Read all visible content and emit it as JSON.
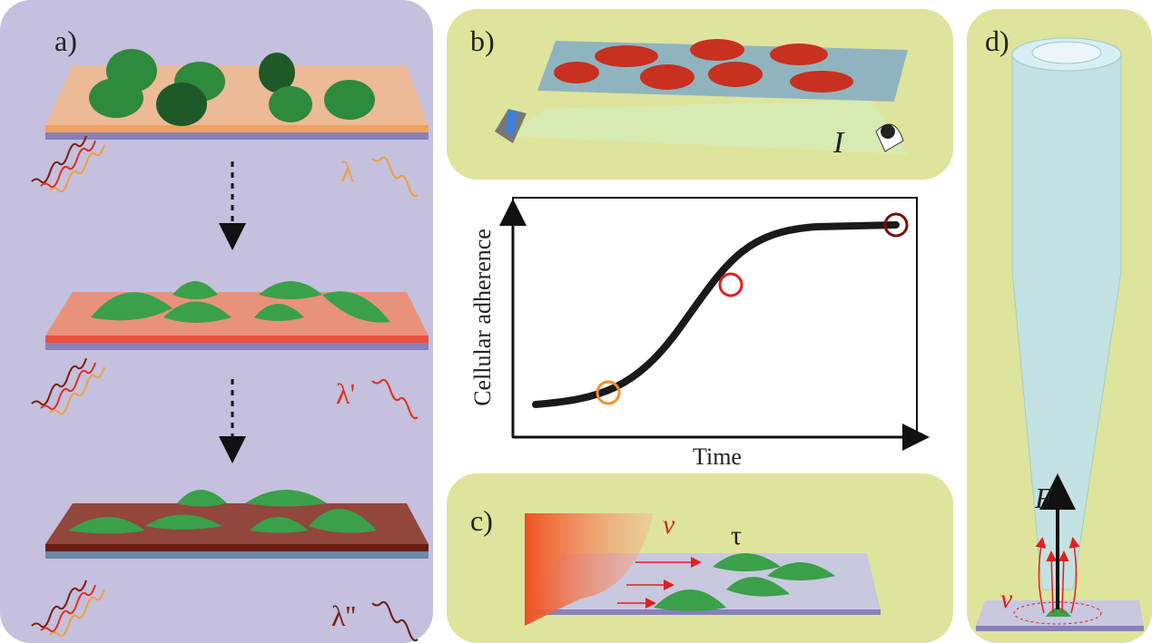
{
  "panels": {
    "a": {
      "label": "a)",
      "wavelengths": [
        "λ",
        "λ'",
        "λ''"
      ]
    },
    "b": {
      "label": "b)",
      "intensity": "I"
    },
    "graph": {
      "y_label": "Cellular adherence",
      "x_label": "Time"
    },
    "c": {
      "label": "c)",
      "velocity": "v",
      "shear": "τ"
    },
    "d": {
      "label": "d)",
      "force": "F",
      "velocity": "v"
    }
  }
}
